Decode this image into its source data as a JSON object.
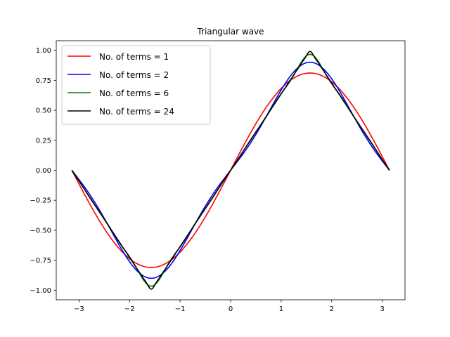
{
  "chart_data": {
    "type": "line",
    "title": "Triangular wave",
    "xlabel": "",
    "ylabel": "",
    "xlim": [
      -3.45,
      3.45
    ],
    "ylim": [
      -1.08,
      1.08
    ],
    "x_ticks": [
      -3,
      -2,
      -1,
      0,
      1,
      2,
      3
    ],
    "x_tick_labels": [
      "−3",
      "−2",
      "−1",
      "0",
      "1",
      "2",
      "3"
    ],
    "y_ticks": [
      -1.0,
      -0.75,
      -0.5,
      -0.25,
      0.0,
      0.25,
      0.5,
      0.75,
      1.0
    ],
    "y_tick_labels": [
      "−1.00",
      "−0.75",
      "−0.50",
      "−0.25",
      "0.00",
      "0.25",
      "0.50",
      "0.75",
      "1.00"
    ],
    "grid": true,
    "legend_position": "top-left",
    "x_range": [
      -3.1416,
      3.1416
    ],
    "series": [
      {
        "name": "No. of terms = 1",
        "terms": 1,
        "color": "#ff0000",
        "points": [
          [
            -3.1416,
            0.0
          ],
          [
            -1.5708,
            -0.811
          ],
          [
            0.0,
            0.0
          ],
          [
            1.5708,
            0.811
          ],
          [
            3.1416,
            0.0
          ]
        ]
      },
      {
        "name": "No. of terms = 2",
        "terms": 2,
        "color": "#0000ff",
        "points": [
          [
            -3.1416,
            0.0
          ],
          [
            -1.5708,
            -0.901
          ],
          [
            0.0,
            0.0
          ],
          [
            1.5708,
            0.901
          ],
          [
            3.1416,
            0.0
          ]
        ]
      },
      {
        "name": "No. of terms = 6",
        "terms": 6,
        "color": "#008000",
        "points": [
          [
            -3.1416,
            0.0
          ],
          [
            -1.5708,
            -0.967
          ],
          [
            0.0,
            0.0
          ],
          [
            1.5708,
            0.967
          ],
          [
            3.1416,
            0.0
          ]
        ]
      },
      {
        "name": "No. of terms = 24",
        "terms": 24,
        "color": "#000000",
        "points": [
          [
            -3.1416,
            0.0
          ],
          [
            -1.5708,
            -0.992
          ],
          [
            0.0,
            0.0
          ],
          [
            1.5708,
            0.992
          ],
          [
            3.1416,
            0.0
          ]
        ]
      }
    ]
  }
}
